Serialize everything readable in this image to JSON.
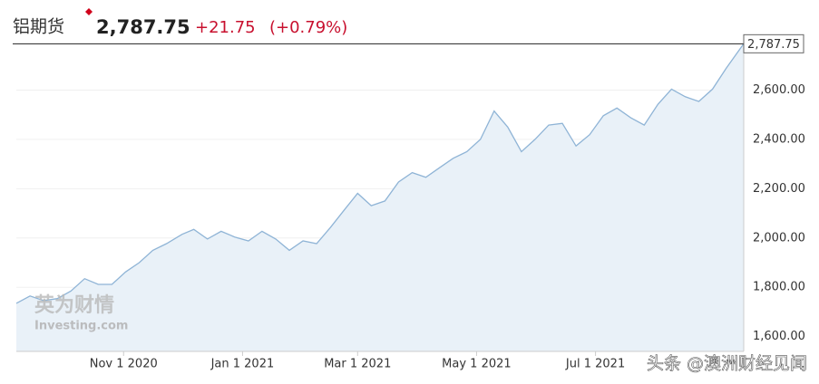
{
  "chart_data": {
    "type": "line",
    "title": "铝期货",
    "price": "2,787.75",
    "change": "+21.75",
    "change_pct": "(+0.79%)",
    "last_label": "2,787.75",
    "last_value": 2787.75,
    "watermark": "英为财情",
    "watermark_sub": "Investing.com",
    "credit": "头条 @澳洲财经见闻",
    "x": [
      "2020-09-07",
      "2020-09-14",
      "2020-09-21",
      "2020-09-28",
      "2020-10-05",
      "2020-10-12",
      "2020-10-19",
      "2020-10-26",
      "2020-11-02",
      "2020-11-09",
      "2020-11-16",
      "2020-11-23",
      "2020-12-01",
      "2020-12-07",
      "2020-12-14",
      "2020-12-21",
      "2020-12-28",
      "2021-01-04",
      "2021-01-11",
      "2021-01-18",
      "2021-01-25",
      "2021-02-01",
      "2021-02-08",
      "2021-02-15",
      "2021-02-22",
      "2021-03-01",
      "2021-03-08",
      "2021-03-15",
      "2021-03-22",
      "2021-03-29",
      "2021-04-05",
      "2021-04-12",
      "2021-04-19",
      "2021-04-26",
      "2021-05-03",
      "2021-05-10",
      "2021-05-17",
      "2021-05-24",
      "2021-05-31",
      "2021-06-07",
      "2021-06-14",
      "2021-06-21",
      "2021-06-28",
      "2021-07-05",
      "2021-07-12",
      "2021-07-19",
      "2021-07-26",
      "2021-08-02",
      "2021-08-09",
      "2021-08-16",
      "2021-08-23",
      "2021-08-30",
      "2021-09-06",
      "2021-09-15"
    ],
    "series": [
      {
        "name": "铝期货",
        "color": "#8fb4d6",
        "fill": "#e9f1f8",
        "values": [
          1735,
          1765,
          1746,
          1754,
          1785,
          1835,
          1812,
          1812,
          1862,
          1900,
          1950,
          1977,
          2015,
          2035,
          1996,
          2027,
          2004,
          1988,
          2027,
          1996,
          1950,
          1988,
          1977,
          2042,
          2112,
          2181,
          2131,
          2150,
          2227,
          2265,
          2246,
          2285,
          2323,
          2350,
          2400,
          2515,
          2450,
          2350,
          2400,
          2458,
          2465,
          2373,
          2419,
          2496,
          2527,
          2488,
          2458,
          2542,
          2604,
          2573,
          2554,
          2604,
          2688,
          2787.75
        ]
      }
    ],
    "xlim": [
      "2020-09-07",
      "2021-09-15"
    ],
    "xticks": [
      {
        "value": "2020-11-01",
        "label": "Nov 1 2020"
      },
      {
        "value": "2021-01-01",
        "label": "Jan 1 2021"
      },
      {
        "value": "2021-03-01",
        "label": "Mar 1 2021"
      },
      {
        "value": "2021-05-01",
        "label": "May 1 2021"
      },
      {
        "value": "2021-07-01",
        "label": "Jul 1 2021"
      }
    ],
    "ylim": [
      1540,
      2800
    ],
    "yticks": [
      {
        "value": 1600,
        "label": "1,600.00"
      },
      {
        "value": 1800,
        "label": "1,800.00"
      },
      {
        "value": 2000,
        "label": "2,000.00"
      },
      {
        "value": 2200,
        "label": "2,200.00"
      },
      {
        "value": 2400,
        "label": "2,400.00"
      },
      {
        "value": 2600,
        "label": "2,600.00"
      }
    ]
  }
}
